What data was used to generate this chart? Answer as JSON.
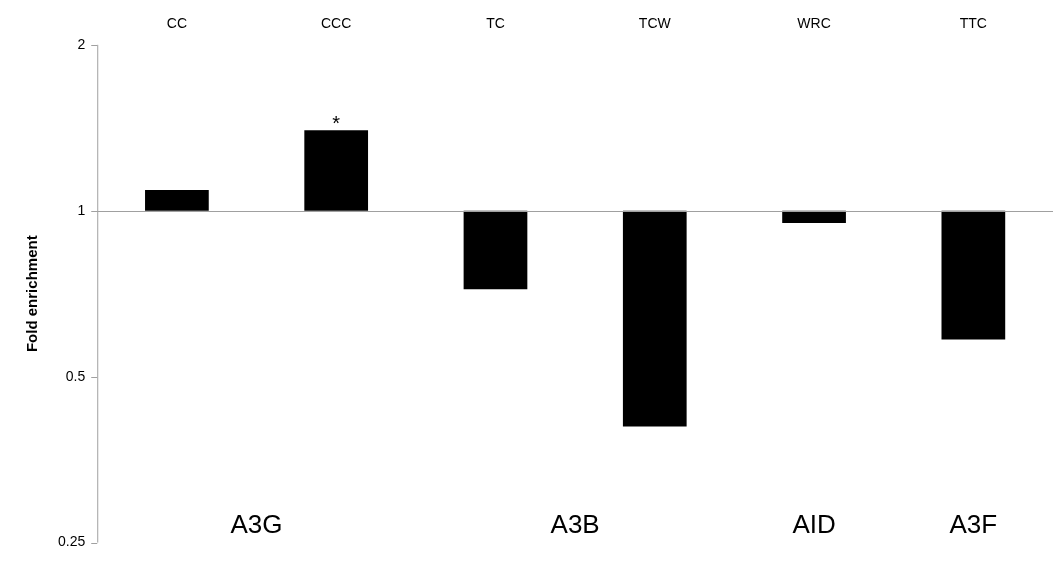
{
  "chart_data": {
    "type": "bar",
    "ylabel": "Fold enrichment",
    "categories": [
      "CC",
      "CCC",
      "TC",
      "TCW",
      "WRC",
      "TTC"
    ],
    "base": [
      1,
      1,
      1,
      1,
      1,
      1
    ],
    "values": [
      0.09,
      0.4,
      -0.28,
      -0.594,
      -0.05,
      -0.416
    ],
    "color": "#000000",
    "ref_lines": [
      {
        "axis": "y",
        "value": 1,
        "color": "#a0a0a0"
      }
    ],
    "log": true,
    "ylim": [
      0.25,
      2
    ],
    "yticks": [
      0.25,
      0.5,
      1,
      2
    ],
    "grid": false,
    "legend": false,
    "annotations": [
      {
        "text": "*",
        "x": "CCC",
        "y": 1.4
      },
      "A3G",
      "A3B",
      "AID",
      "A3F"
    ]
  }
}
